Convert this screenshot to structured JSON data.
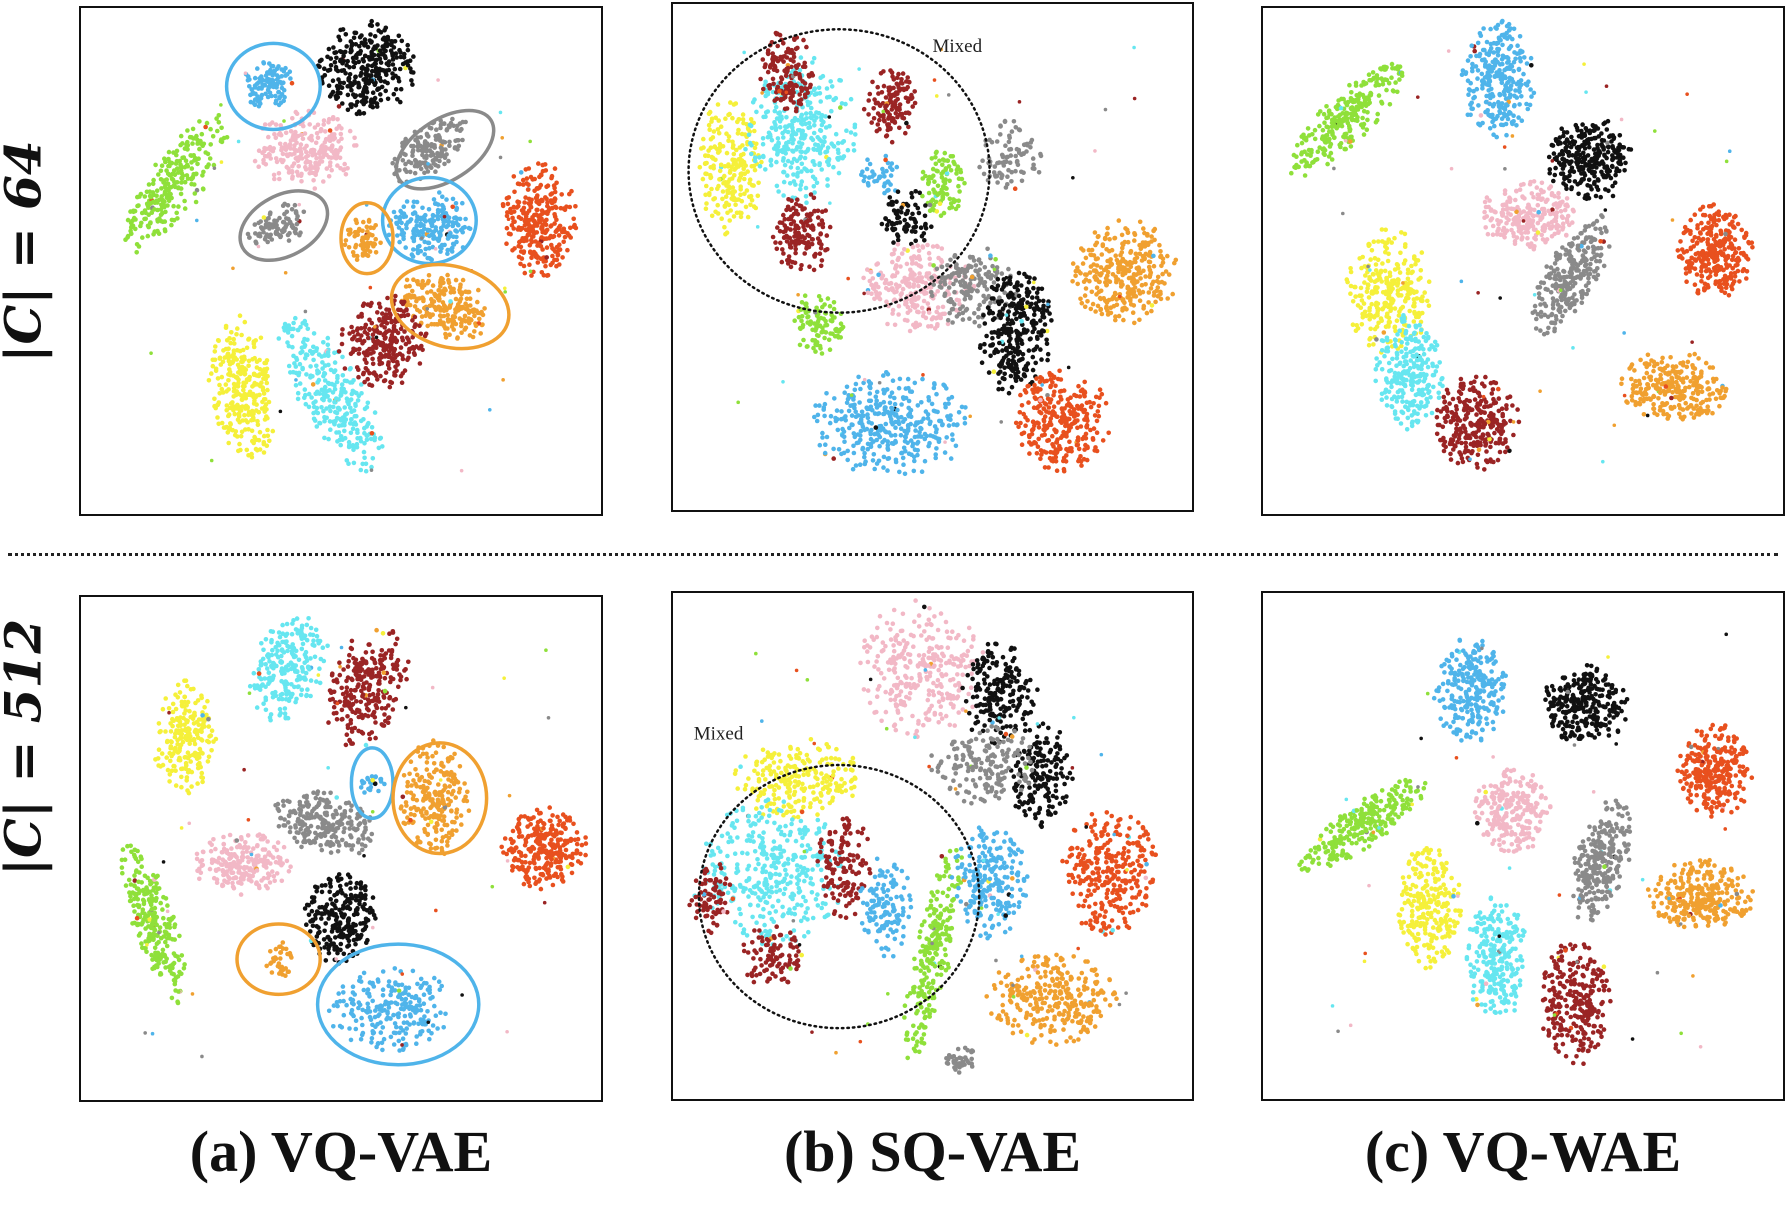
{
  "row_labels": [
    "|C| = 64",
    "|C| = 512"
  ],
  "column_labels": [
    "(a) VQ-VAE",
    "(b) SQ-VAE",
    "(c) VQ-WAE"
  ],
  "annotation_text": "Mixed",
  "colors": {
    "green": "#8fe03a",
    "blue": "#4fb4ea",
    "black": "#111111",
    "pink": "#f2b8c6",
    "gray": "#8a8a8a",
    "orange": "#f0a030",
    "red": "#e8501e",
    "yellow": "#f5f03a",
    "cyan": "#66e6f0",
    "brown": "#9a2424"
  },
  "chart_data": {
    "type": "scatter",
    "description_kind": "t-SNE embeddings, 10 colored classes per panel",
    "panels": [
      {
        "row": "|C| = 64",
        "column": "(a) VQ-VAE",
        "clusters": [
          {
            "color": "green",
            "cx": 0.18,
            "cy": 0.35,
            "rx": 0.05,
            "ry": 0.16,
            "angle": 35,
            "n": 260
          },
          {
            "color": "blue",
            "cx": 0.36,
            "cy": 0.15,
            "rx": 0.045,
            "ry": 0.05,
            "angle": 0,
            "n": 110
          },
          {
            "color": "black",
            "cx": 0.55,
            "cy": 0.12,
            "rx": 0.09,
            "ry": 0.09,
            "angle": 0,
            "n": 320
          },
          {
            "color": "pink",
            "cx": 0.43,
            "cy": 0.28,
            "rx": 0.1,
            "ry": 0.075,
            "angle": 0,
            "n": 240
          },
          {
            "color": "gray",
            "cx": 0.67,
            "cy": 0.28,
            "rx": 0.085,
            "ry": 0.045,
            "angle": -35,
            "n": 160
          },
          {
            "color": "gray",
            "cx": 0.38,
            "cy": 0.43,
            "rx": 0.06,
            "ry": 0.04,
            "angle": -25,
            "n": 90
          },
          {
            "color": "blue",
            "cx": 0.67,
            "cy": 0.43,
            "rx": 0.08,
            "ry": 0.065,
            "angle": 0,
            "n": 210
          },
          {
            "color": "orange",
            "cx": 0.54,
            "cy": 0.46,
            "rx": 0.04,
            "ry": 0.045,
            "angle": 0,
            "n": 70
          },
          {
            "color": "orange",
            "cx": 0.7,
            "cy": 0.59,
            "rx": 0.09,
            "ry": 0.06,
            "angle": 20,
            "n": 220
          },
          {
            "color": "red",
            "cx": 0.88,
            "cy": 0.42,
            "rx": 0.07,
            "ry": 0.11,
            "angle": 0,
            "n": 300
          },
          {
            "color": "yellow",
            "cx": 0.31,
            "cy": 0.75,
            "rx": 0.06,
            "ry": 0.14,
            "angle": -8,
            "n": 280
          },
          {
            "color": "cyan",
            "cx": 0.48,
            "cy": 0.76,
            "rx": 0.06,
            "ry": 0.17,
            "angle": -30,
            "n": 300
          },
          {
            "color": "brown",
            "cx": 0.58,
            "cy": 0.66,
            "rx": 0.08,
            "ry": 0.09,
            "angle": 20,
            "n": 260
          }
        ],
        "rings": [
          {
            "color": "blue",
            "cx": 0.37,
            "cy": 0.155,
            "rx": 0.09,
            "ry": 0.085,
            "angle": 0
          },
          {
            "color": "gray",
            "cx": 0.7,
            "cy": 0.28,
            "rx": 0.105,
            "ry": 0.06,
            "angle": -33
          },
          {
            "color": "gray",
            "cx": 0.39,
            "cy": 0.43,
            "rx": 0.09,
            "ry": 0.06,
            "angle": -28
          },
          {
            "color": "blue",
            "cx": 0.67,
            "cy": 0.42,
            "rx": 0.09,
            "ry": 0.085,
            "angle": 0
          },
          {
            "color": "orange",
            "cx": 0.55,
            "cy": 0.455,
            "rx": 0.05,
            "ry": 0.07,
            "angle": 0
          },
          {
            "color": "orange",
            "cx": 0.71,
            "cy": 0.59,
            "rx": 0.115,
            "ry": 0.08,
            "angle": 15
          }
        ]
      },
      {
        "row": "|C| = 64",
        "column": "(b) SQ-VAE",
        "clusters": [
          {
            "color": "yellow",
            "cx": 0.11,
            "cy": 0.32,
            "rx": 0.06,
            "ry": 0.13,
            "angle": 0,
            "n": 220
          },
          {
            "color": "cyan",
            "cx": 0.25,
            "cy": 0.25,
            "rx": 0.1,
            "ry": 0.14,
            "angle": 0,
            "n": 330
          },
          {
            "color": "brown",
            "cx": 0.22,
            "cy": 0.14,
            "rx": 0.05,
            "ry": 0.09,
            "angle": 0,
            "n": 150
          },
          {
            "color": "brown",
            "cx": 0.42,
            "cy": 0.2,
            "rx": 0.05,
            "ry": 0.07,
            "angle": 0,
            "n": 130
          },
          {
            "color": "brown",
            "cx": 0.25,
            "cy": 0.45,
            "rx": 0.06,
            "ry": 0.08,
            "angle": 0,
            "n": 150
          },
          {
            "color": "green",
            "cx": 0.52,
            "cy": 0.36,
            "rx": 0.04,
            "ry": 0.07,
            "angle": 0,
            "n": 100
          },
          {
            "color": "green",
            "cx": 0.28,
            "cy": 0.63,
            "rx": 0.05,
            "ry": 0.06,
            "angle": 0,
            "n": 100
          },
          {
            "color": "blue",
            "cx": 0.4,
            "cy": 0.34,
            "rx": 0.04,
            "ry": 0.04,
            "angle": 0,
            "n": 40
          },
          {
            "color": "black",
            "cx": 0.45,
            "cy": 0.42,
            "rx": 0.05,
            "ry": 0.06,
            "angle": 0,
            "n": 80
          },
          {
            "color": "gray",
            "cx": 0.65,
            "cy": 0.3,
            "rx": 0.06,
            "ry": 0.07,
            "angle": 0,
            "n": 90
          },
          {
            "color": "pink",
            "cx": 0.47,
            "cy": 0.56,
            "rx": 0.1,
            "ry": 0.09,
            "angle": 0,
            "n": 250
          },
          {
            "color": "gray",
            "cx": 0.58,
            "cy": 0.56,
            "rx": 0.08,
            "ry": 0.08,
            "angle": 0,
            "n": 170
          },
          {
            "color": "black",
            "cx": 0.66,
            "cy": 0.65,
            "rx": 0.07,
            "ry": 0.12,
            "angle": 0,
            "n": 300
          },
          {
            "color": "orange",
            "cx": 0.87,
            "cy": 0.53,
            "rx": 0.1,
            "ry": 0.1,
            "angle": 0,
            "n": 320
          },
          {
            "color": "red",
            "cx": 0.75,
            "cy": 0.82,
            "rx": 0.09,
            "ry": 0.1,
            "angle": 0,
            "n": 300
          },
          {
            "color": "blue",
            "cx": 0.42,
            "cy": 0.83,
            "rx": 0.15,
            "ry": 0.1,
            "angle": 0,
            "n": 360
          }
        ],
        "rings": [
          {
            "color": "black",
            "cx": 0.32,
            "cy": 0.33,
            "rx": 0.29,
            "ry": 0.28,
            "angle": 0,
            "dotted": true
          }
        ],
        "mixed_label": {
          "x": 0.5,
          "y": 0.095
        }
      },
      {
        "row": "|C| = 64",
        "column": "(c) VQ-WAE",
        "clusters": [
          {
            "color": "green",
            "cx": 0.16,
            "cy": 0.22,
            "rx": 0.045,
            "ry": 0.15,
            "angle": 45,
            "n": 270
          },
          {
            "color": "blue",
            "cx": 0.45,
            "cy": 0.14,
            "rx": 0.07,
            "ry": 0.11,
            "angle": 0,
            "n": 290
          },
          {
            "color": "black",
            "cx": 0.63,
            "cy": 0.3,
            "rx": 0.08,
            "ry": 0.08,
            "angle": 0,
            "n": 280
          },
          {
            "color": "pink",
            "cx": 0.51,
            "cy": 0.41,
            "rx": 0.09,
            "ry": 0.065,
            "angle": 0,
            "n": 250
          },
          {
            "color": "gray",
            "cx": 0.59,
            "cy": 0.53,
            "rx": 0.05,
            "ry": 0.13,
            "angle": 30,
            "n": 260
          },
          {
            "color": "red",
            "cx": 0.87,
            "cy": 0.48,
            "rx": 0.07,
            "ry": 0.09,
            "angle": 0,
            "n": 290
          },
          {
            "color": "yellow",
            "cx": 0.24,
            "cy": 0.56,
            "rx": 0.08,
            "ry": 0.12,
            "angle": 0,
            "n": 290
          },
          {
            "color": "cyan",
            "cx": 0.28,
            "cy": 0.72,
            "rx": 0.065,
            "ry": 0.11,
            "angle": 0,
            "n": 250
          },
          {
            "color": "brown",
            "cx": 0.41,
            "cy": 0.82,
            "rx": 0.08,
            "ry": 0.09,
            "angle": 0,
            "n": 280
          },
          {
            "color": "orange",
            "cx": 0.79,
            "cy": 0.75,
            "rx": 0.1,
            "ry": 0.07,
            "angle": 5,
            "n": 280
          }
        ],
        "rings": []
      },
      {
        "row": "|C| = 512",
        "column": "(a) VQ-VAE",
        "clusters": [
          {
            "color": "cyan",
            "cx": 0.4,
            "cy": 0.14,
            "rx": 0.065,
            "ry": 0.11,
            "angle": 20,
            "n": 230
          },
          {
            "color": "brown",
            "cx": 0.55,
            "cy": 0.18,
            "rx": 0.07,
            "ry": 0.12,
            "angle": 20,
            "n": 260
          },
          {
            "color": "yellow",
            "cx": 0.2,
            "cy": 0.28,
            "rx": 0.06,
            "ry": 0.11,
            "angle": 0,
            "n": 220
          },
          {
            "color": "blue",
            "cx": 0.56,
            "cy": 0.37,
            "rx": 0.025,
            "ry": 0.025,
            "angle": 0,
            "n": 25
          },
          {
            "color": "orange",
            "cx": 0.68,
            "cy": 0.4,
            "rx": 0.065,
            "ry": 0.11,
            "angle": 0,
            "n": 230
          },
          {
            "color": "gray",
            "cx": 0.47,
            "cy": 0.45,
            "rx": 0.1,
            "ry": 0.06,
            "angle": 15,
            "n": 240
          },
          {
            "color": "red",
            "cx": 0.89,
            "cy": 0.5,
            "rx": 0.08,
            "ry": 0.08,
            "angle": 0,
            "n": 280
          },
          {
            "color": "pink",
            "cx": 0.31,
            "cy": 0.53,
            "rx": 0.09,
            "ry": 0.06,
            "angle": 0,
            "n": 220
          },
          {
            "color": "green",
            "cx": 0.14,
            "cy": 0.65,
            "rx": 0.04,
            "ry": 0.16,
            "angle": -18,
            "n": 260
          },
          {
            "color": "black",
            "cx": 0.5,
            "cy": 0.64,
            "rx": 0.07,
            "ry": 0.09,
            "angle": 0,
            "n": 240
          },
          {
            "color": "orange",
            "cx": 0.38,
            "cy": 0.72,
            "rx": 0.025,
            "ry": 0.04,
            "angle": 0,
            "n": 35
          },
          {
            "color": "blue",
            "cx": 0.6,
            "cy": 0.82,
            "rx": 0.12,
            "ry": 0.08,
            "angle": 0,
            "n": 230
          }
        ],
        "rings": [
          {
            "color": "blue",
            "cx": 0.56,
            "cy": 0.37,
            "rx": 0.04,
            "ry": 0.07,
            "angle": 0
          },
          {
            "color": "orange",
            "cx": 0.69,
            "cy": 0.4,
            "rx": 0.09,
            "ry": 0.11,
            "angle": 0
          },
          {
            "color": "orange",
            "cx": 0.38,
            "cy": 0.72,
            "rx": 0.08,
            "ry": 0.07,
            "angle": 0
          },
          {
            "color": "blue",
            "cx": 0.61,
            "cy": 0.81,
            "rx": 0.155,
            "ry": 0.12,
            "angle": 0
          }
        ]
      },
      {
        "row": "|C| = 512",
        "column": "(b) SQ-VAE",
        "clusters": [
          {
            "color": "pink",
            "cx": 0.48,
            "cy": 0.15,
            "rx": 0.12,
            "ry": 0.13,
            "angle": 0,
            "n": 300
          },
          {
            "color": "black",
            "cx": 0.63,
            "cy": 0.2,
            "rx": 0.07,
            "ry": 0.1,
            "angle": 0,
            "n": 200
          },
          {
            "color": "black",
            "cx": 0.71,
            "cy": 0.36,
            "rx": 0.06,
            "ry": 0.1,
            "angle": 0,
            "n": 170
          },
          {
            "color": "gray",
            "cx": 0.6,
            "cy": 0.34,
            "rx": 0.1,
            "ry": 0.08,
            "angle": 0,
            "n": 170
          },
          {
            "color": "yellow",
            "cx": 0.24,
            "cy": 0.37,
            "rx": 0.12,
            "ry": 0.08,
            "angle": 0,
            "n": 230
          },
          {
            "color": "cyan",
            "cx": 0.19,
            "cy": 0.55,
            "rx": 0.13,
            "ry": 0.14,
            "angle": 0,
            "n": 360
          },
          {
            "color": "brown",
            "cx": 0.07,
            "cy": 0.6,
            "rx": 0.04,
            "ry": 0.07,
            "angle": 0,
            "n": 80
          },
          {
            "color": "brown",
            "cx": 0.19,
            "cy": 0.72,
            "rx": 0.06,
            "ry": 0.06,
            "angle": 0,
            "n": 100
          },
          {
            "color": "brown",
            "cx": 0.33,
            "cy": 0.54,
            "rx": 0.05,
            "ry": 0.1,
            "angle": 0,
            "n": 130
          },
          {
            "color": "blue",
            "cx": 0.41,
            "cy": 0.62,
            "rx": 0.05,
            "ry": 0.1,
            "angle": 0,
            "n": 120
          },
          {
            "color": "green",
            "cx": 0.5,
            "cy": 0.71,
            "rx": 0.035,
            "ry": 0.23,
            "angle": 12,
            "n": 230
          },
          {
            "color": "blue",
            "cx": 0.61,
            "cy": 0.57,
            "rx": 0.07,
            "ry": 0.11,
            "angle": 0,
            "n": 230
          },
          {
            "color": "red",
            "cx": 0.84,
            "cy": 0.55,
            "rx": 0.09,
            "ry": 0.12,
            "angle": 0,
            "n": 300
          },
          {
            "color": "orange",
            "cx": 0.73,
            "cy": 0.8,
            "rx": 0.12,
            "ry": 0.09,
            "angle": 0,
            "n": 300
          },
          {
            "color": "gray",
            "cx": 0.55,
            "cy": 0.92,
            "rx": 0.03,
            "ry": 0.03,
            "angle": 0,
            "n": 40
          }
        ],
        "rings": [
          {
            "color": "black",
            "cx": 0.32,
            "cy": 0.6,
            "rx": 0.27,
            "ry": 0.26,
            "angle": 0,
            "dotted": true
          }
        ],
        "mixed_label": {
          "x": 0.04,
          "y": 0.29
        }
      },
      {
        "row": "|C| = 512",
        "column": "(c) VQ-WAE",
        "clusters": [
          {
            "color": "blue",
            "cx": 0.4,
            "cy": 0.19,
            "rx": 0.07,
            "ry": 0.1,
            "angle": 0,
            "n": 260
          },
          {
            "color": "black",
            "cx": 0.62,
            "cy": 0.22,
            "rx": 0.08,
            "ry": 0.08,
            "angle": 0,
            "n": 280
          },
          {
            "color": "red",
            "cx": 0.87,
            "cy": 0.35,
            "rx": 0.07,
            "ry": 0.09,
            "angle": 0,
            "n": 290
          },
          {
            "color": "green",
            "cx": 0.19,
            "cy": 0.46,
            "rx": 0.04,
            "ry": 0.15,
            "angle": 55,
            "n": 260
          },
          {
            "color": "pink",
            "cx": 0.48,
            "cy": 0.43,
            "rx": 0.07,
            "ry": 0.08,
            "angle": 0,
            "n": 240
          },
          {
            "color": "gray",
            "cx": 0.65,
            "cy": 0.53,
            "rx": 0.05,
            "ry": 0.12,
            "angle": 15,
            "n": 250
          },
          {
            "color": "orange",
            "cx": 0.84,
            "cy": 0.6,
            "rx": 0.1,
            "ry": 0.07,
            "angle": 0,
            "n": 290
          },
          {
            "color": "yellow",
            "cx": 0.32,
            "cy": 0.62,
            "rx": 0.06,
            "ry": 0.12,
            "angle": 0,
            "n": 250
          },
          {
            "color": "cyan",
            "cx": 0.45,
            "cy": 0.72,
            "rx": 0.06,
            "ry": 0.12,
            "angle": 0,
            "n": 250
          },
          {
            "color": "brown",
            "cx": 0.6,
            "cy": 0.81,
            "rx": 0.065,
            "ry": 0.12,
            "angle": 0,
            "n": 270
          }
        ],
        "rings": []
      }
    ]
  }
}
